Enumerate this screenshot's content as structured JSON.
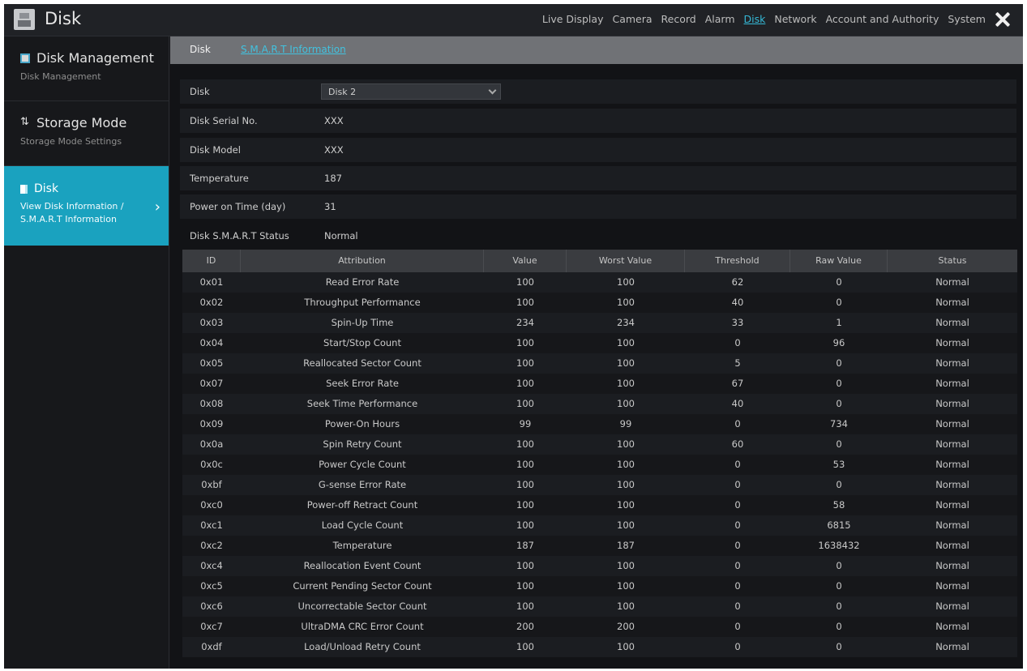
{
  "window": {
    "title": "Disk"
  },
  "nav": [
    "Live Display",
    "Camera",
    "Record",
    "Alarm",
    "Disk",
    "Network",
    "Account and Authority",
    "System"
  ],
  "nav_active_index": 4,
  "sidebar": {
    "items": [
      {
        "title": "Disk Management",
        "sub": "Disk Management"
      },
      {
        "title": "Storage Mode",
        "sub": "Storage Mode Settings"
      },
      {
        "title": "Disk",
        "sub": "View Disk Information / S.M.A.R.T Information"
      }
    ]
  },
  "tabs": {
    "disk": "Disk",
    "smart": "S.M.A.R.T Information"
  },
  "info": {
    "disk_label": "Disk",
    "disk_value": "Disk 2",
    "serial_label": "Disk Serial No.",
    "serial_value": "XXX",
    "model_label": "Disk Model",
    "model_value": "XXX",
    "temp_label": "Temperature",
    "temp_value": "187",
    "power_label": "Power on Time (day)",
    "power_value": "31",
    "status_label": "Disk S.M.A.R.T Status",
    "status_value": "Normal"
  },
  "table": {
    "headers": [
      "ID",
      "Attribution",
      "Value",
      "Worst Value",
      "Threshold",
      "Raw Value",
      "Status"
    ],
    "rows": [
      [
        "0x01",
        "Read Error Rate",
        "100",
        "100",
        "62",
        "0",
        "Normal"
      ],
      [
        "0x02",
        "Throughput Performance",
        "100",
        "100",
        "40",
        "0",
        "Normal"
      ],
      [
        "0x03",
        "Spin-Up Time",
        "234",
        "234",
        "33",
        "1",
        "Normal"
      ],
      [
        "0x04",
        "Start/Stop Count",
        "100",
        "100",
        "0",
        "96",
        "Normal"
      ],
      [
        "0x05",
        "Reallocated Sector Count",
        "100",
        "100",
        "5",
        "0",
        "Normal"
      ],
      [
        "0x07",
        "Seek Error Rate",
        "100",
        "100",
        "67",
        "0",
        "Normal"
      ],
      [
        "0x08",
        "Seek Time Performance",
        "100",
        "100",
        "40",
        "0",
        "Normal"
      ],
      [
        "0x09",
        "Power-On Hours",
        "99",
        "99",
        "0",
        "734",
        "Normal"
      ],
      [
        "0x0a",
        "Spin Retry Count",
        "100",
        "100",
        "60",
        "0",
        "Normal"
      ],
      [
        "0x0c",
        "Power Cycle Count",
        "100",
        "100",
        "0",
        "53",
        "Normal"
      ],
      [
        "0xbf",
        "G-sense Error Rate",
        "100",
        "100",
        "0",
        "0",
        "Normal"
      ],
      [
        "0xc0",
        "Power-off Retract Count",
        "100",
        "100",
        "0",
        "58",
        "Normal"
      ],
      [
        "0xc1",
        "Load Cycle Count",
        "100",
        "100",
        "0",
        "6815",
        "Normal"
      ],
      [
        "0xc2",
        "Temperature",
        "187",
        "187",
        "0",
        "1638432",
        "Normal"
      ],
      [
        "0xc4",
        "Reallocation Event Count",
        "100",
        "100",
        "0",
        "0",
        "Normal"
      ],
      [
        "0xc5",
        "Current Pending Sector Count",
        "100",
        "100",
        "0",
        "0",
        "Normal"
      ],
      [
        "0xc6",
        "Uncorrectable Sector Count",
        "100",
        "100",
        "0",
        "0",
        "Normal"
      ],
      [
        "0xc7",
        "UltraDMA CRC Error Count",
        "200",
        "200",
        "0",
        "0",
        "Normal"
      ],
      [
        "0xdf",
        "Load/Unload Retry Count",
        "100",
        "100",
        "0",
        "0",
        "Normal"
      ]
    ]
  }
}
